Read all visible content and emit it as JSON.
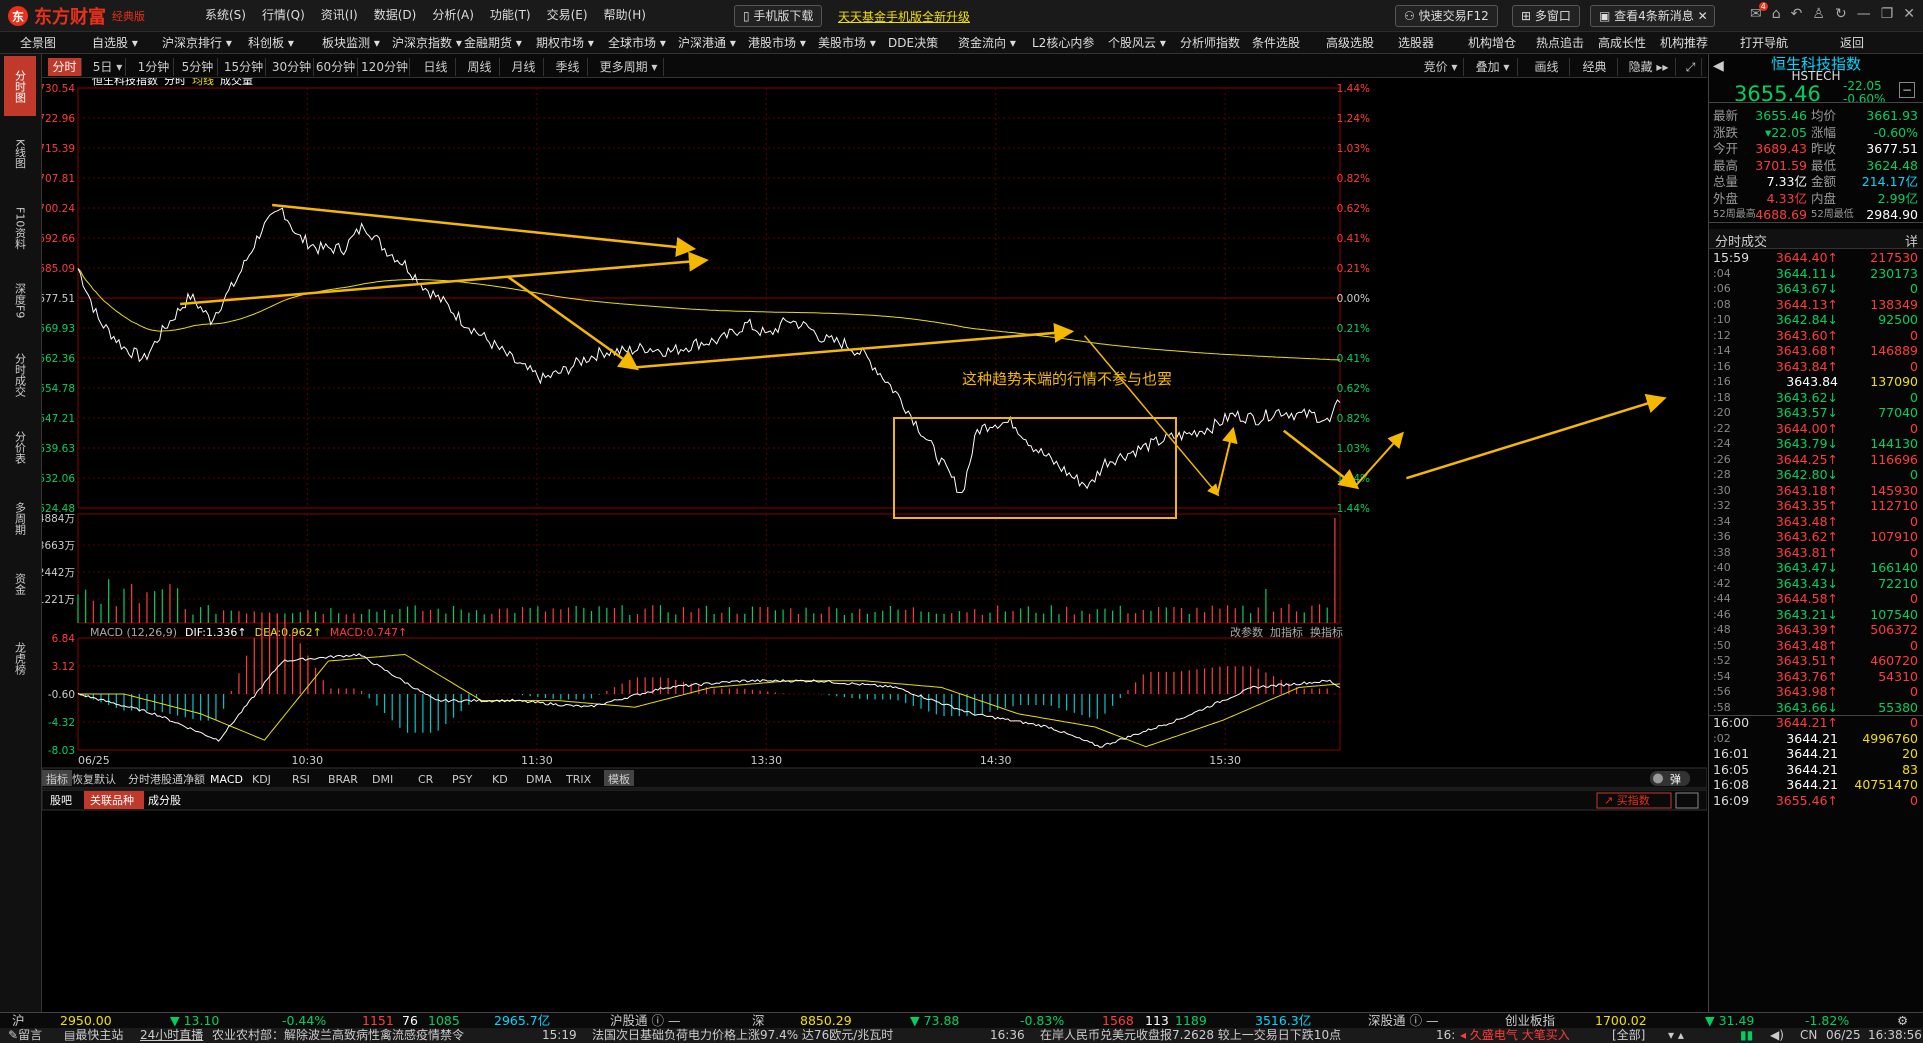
{
  "app": {
    "logo": "东方财富",
    "edition": "经典版",
    "menu": [
      "系统(S)",
      "行情(Q)",
      "资讯(I)",
      "数据(D)",
      "分析(A)",
      "功能(T)",
      "交易(E)",
      "帮助(H)"
    ],
    "mobile_download": "手机版下载",
    "fund_promo": "天天基金手机版全新升级",
    "quick_trade": "快速交易F12",
    "multi_window": "多窗口",
    "messages": "查看4条新消息",
    "message_badge": "4"
  },
  "navbar": [
    "全景图",
    "自选股 ▾",
    "沪深京排行 ▾",
    "科创板 ▾",
    "板块监测 ▾",
    "沪深京指数 ▾",
    "金融期货 ▾",
    "期权市场 ▾",
    "全球市场 ▾",
    "沪深港通 ▾",
    "港股市场 ▾",
    "美股市场 ▾",
    "DDE决策",
    "资金流向 ▾",
    "L2核心内参",
    "个股风云 ▾",
    "分析师指数",
    "条件选股",
    "高级选股",
    "选股器",
    "机构增仓",
    "热点追击",
    "高成长性",
    "机构推荐",
    "打开导航",
    "返回"
  ],
  "left_tabs": [
    "分时图",
    "K线图",
    "F10资料",
    "深度F9",
    "分时成交",
    "分价表",
    "多周期",
    "资金",
    "龙虎榜"
  ],
  "periods": [
    "分时",
    "5日 ▾",
    "1分钟",
    "5分钟",
    "15分钟",
    "30分钟",
    "60分钟",
    "120分钟",
    "日线",
    "周线",
    "月线",
    "季线",
    "更多周期 ▾"
  ],
  "right_tools": [
    "竞价 ▾",
    "叠加 ▾",
    "画线",
    "经典",
    "隐藏 ▸▸"
  ],
  "legend": {
    "name": "恒生科技指数",
    "intraday": "分时",
    "avg": "均线",
    "volume": "成交量"
  },
  "annotation": "这种趋势末端的行情不参与也罢",
  "price_axis": [
    "3730.54",
    "3722.96",
    "3715.39",
    "3707.81",
    "3700.24",
    "3692.66",
    "3685.09",
    "3677.51",
    "3669.93",
    "3662.36",
    "3654.78",
    "3647.21",
    "3639.63",
    "3632.06",
    "3624.48"
  ],
  "pct_axis": [
    "1.44%",
    "1.24%",
    "1.03%",
    "0.82%",
    "0.62%",
    "0.41%",
    "0.21%",
    "0.00%",
    "0.21%",
    "0.41%",
    "0.62%",
    "0.82%",
    "1.03%",
    "1.24%",
    "1.44%"
  ],
  "volume_axis": [
    "4884万",
    "3663万",
    "2442万",
    "1221万"
  ],
  "macd_axis": [
    "6.84",
    "3.12",
    "-0.60",
    "-4.32",
    "-8.03"
  ],
  "macd_header": {
    "name": "MACD (12,26,9)",
    "dif": "DIF:1.336↑",
    "dea": "DEA:0.962↑",
    "macd": "MACD:0.747↑",
    "tools": [
      "改参数",
      "加指标",
      "换指标"
    ]
  },
  "time_axis": [
    "06/25",
    "10:30",
    "11:30",
    "13:30",
    "14:30",
    "15:30"
  ],
  "indicator_tabs": [
    "指标",
    "恢复默认",
    "分时港股通净额",
    "MACD",
    "KDJ",
    "RSI",
    "BRAR",
    "DMI",
    "CR",
    "PSY",
    "KD",
    "DMA",
    "TRIX",
    "模板"
  ],
  "bottom_tabs": [
    "股吧",
    "关联品种",
    "成分股"
  ],
  "popup_label": "弹",
  "buy_index": "买指数",
  "quote": {
    "name": "恒生科技指数",
    "code": "HSTECH",
    "price": "3655.46",
    "change": "-22.05",
    "change_pct": "-0.60%",
    "rows": [
      {
        "l1": "最新",
        "v1": "3655.46",
        "l2": "均价",
        "v2": "3661.93"
      },
      {
        "l1": "涨跌",
        "v1": "▾22.05",
        "l2": "涨幅",
        "v2": "-0.60%"
      },
      {
        "l1": "今开",
        "v1": "3689.43",
        "l2": "昨收",
        "v2": "3677.51"
      },
      {
        "l1": "最高",
        "v1": "3701.59",
        "l2": "最低",
        "v2": "3624.48"
      },
      {
        "l1": "总量",
        "v1": "7.33亿",
        "l2": "金额",
        "v2": "214.17亿"
      },
      {
        "l1": "外盘",
        "v1": "4.33亿",
        "l2": "内盘",
        "v2": "2.99亿"
      },
      {
        "l1": "52周最高",
        "v1": "4688.69",
        "l2": "52周最低",
        "v2": "2984.90"
      }
    ],
    "ticks_title": "分时成交",
    "ticks_detail": "详",
    "ticks": [
      {
        "t": "15:59",
        "p": "3644.40↑",
        "v": "217530",
        "c": "r"
      },
      {
        "t": ":04",
        "p": "3644.11↓",
        "v": "230173",
        "c": "g"
      },
      {
        "t": ":06",
        "p": "3643.67↓",
        "v": "0",
        "c": "g"
      },
      {
        "t": ":08",
        "p": "3644.13↑",
        "v": "138349",
        "c": "r"
      },
      {
        "t": ":10",
        "p": "3642.84↓",
        "v": "92500",
        "c": "g"
      },
      {
        "t": ":12",
        "p": "3643.60↑",
        "v": "0",
        "c": "r"
      },
      {
        "t": ":14",
        "p": "3643.68↑",
        "v": "146889",
        "c": "r"
      },
      {
        "t": ":16",
        "p": "3643.84↑",
        "v": "0",
        "c": "r"
      },
      {
        "t": ":16",
        "p": "3643.84",
        "v": "137090",
        "c": "w"
      },
      {
        "t": ":18",
        "p": "3643.62↓",
        "v": "0",
        "c": "g"
      },
      {
        "t": ":20",
        "p": "3643.57↓",
        "v": "77040",
        "c": "g"
      },
      {
        "t": ":22",
        "p": "3644.00↑",
        "v": "0",
        "c": "r"
      },
      {
        "t": ":24",
        "p": "3643.79↓",
        "v": "144130",
        "c": "g"
      },
      {
        "t": ":26",
        "p": "3644.25↑",
        "v": "116696",
        "c": "r"
      },
      {
        "t": ":28",
        "p": "3642.80↓",
        "v": "0",
        "c": "g"
      },
      {
        "t": ":30",
        "p": "3643.18↑",
        "v": "145930",
        "c": "r"
      },
      {
        "t": ":32",
        "p": "3643.35↑",
        "v": "112710",
        "c": "r"
      },
      {
        "t": ":34",
        "p": "3643.48↑",
        "v": "0",
        "c": "r"
      },
      {
        "t": ":36",
        "p": "3643.62↑",
        "v": "107910",
        "c": "r"
      },
      {
        "t": ":38",
        "p": "3643.81↑",
        "v": "0",
        "c": "r"
      },
      {
        "t": ":40",
        "p": "3643.47↓",
        "v": "166140",
        "c": "g"
      },
      {
        "t": ":42",
        "p": "3643.43↓",
        "v": "72210",
        "c": "g"
      },
      {
        "t": ":44",
        "p": "3644.58↑",
        "v": "0",
        "c": "r"
      },
      {
        "t": ":46",
        "p": "3643.21↓",
        "v": "107540",
        "c": "g"
      },
      {
        "t": ":48",
        "p": "3643.39↑",
        "v": "506372",
        "c": "r"
      },
      {
        "t": ":50",
        "p": "3643.48↑",
        "v": "0",
        "c": "r"
      },
      {
        "t": ":52",
        "p": "3643.51↑",
        "v": "460720",
        "c": "r"
      },
      {
        "t": ":54",
        "p": "3643.76↑",
        "v": "54310",
        "c": "r"
      },
      {
        "t": ":56",
        "p": "3643.98↑",
        "v": "0",
        "c": "r"
      },
      {
        "t": ":58",
        "p": "3643.66↓",
        "v": "55380",
        "c": "g"
      },
      {
        "t": "16:00",
        "p": "3644.21↑",
        "v": "0",
        "c": "r"
      },
      {
        "t": ":02",
        "p": "3644.21",
        "v": "4996760",
        "c": "w"
      },
      {
        "t": "16:01",
        "p": "3644.21",
        "v": "20",
        "c": "w"
      },
      {
        "t": "16:05",
        "p": "3644.21",
        "v": "83",
        "c": "w"
      },
      {
        "t": "16:08",
        "p": "3644.21",
        "v": "40751470",
        "c": "w"
      },
      {
        "t": "16:09",
        "p": "3655.46↑",
        "v": "0",
        "c": "r"
      }
    ]
  },
  "statusbar": {
    "sh_label": "沪",
    "sh_val": "2950.00",
    "sh_chg": "▼ 13.10",
    "sh_pct": "-0.44%",
    "sh_up": "1151",
    "sh_flat": "76",
    "sh_down": "1085",
    "sh_amt": "2965.7亿",
    "hgt": "沪股通",
    "sz_label": "深",
    "sz_val": "8850.29",
    "sz_chg": "▼ 73.88",
    "sz_pct": "-0.83%",
    "sz_up": "1568",
    "sz_flat": "113",
    "sz_down": "1189",
    "sz_amt": "3516.3亿",
    "sgt": "深股通",
    "cy_label": "创业板指",
    "cy_val": "1700.02",
    "cy_chg": "▼ 31.49",
    "cy_pct": "-1.82%"
  },
  "newsbar": {
    "leave_msg": "留言",
    "min_site": "最快主站",
    "live": "24小时直播",
    "news1": "农业农村部：解除波兰高致病性禽流感疫情禁令",
    "t2": "15:19",
    "news2": "法国次日基础负荷电力价格上涨97.4% 达76欧元/兆瓦时",
    "t3": "16:36",
    "news3": "在岸人民币兑美元收盘报7.2628 较上一交易日下跌10点",
    "t4": "16:",
    "stock": "久盛电气",
    "big_buy": "大笔买入",
    "big_tag": "[全部]",
    "region": "CN",
    "date": "06/25",
    "clock": "16:38:56"
  },
  "colors": {
    "up": "#ff3b3b",
    "down": "#00d060",
    "avg": "#e8e000",
    "price": "#ffffff",
    "arrow": "#f5b800",
    "accent": "#c0392b"
  }
}
